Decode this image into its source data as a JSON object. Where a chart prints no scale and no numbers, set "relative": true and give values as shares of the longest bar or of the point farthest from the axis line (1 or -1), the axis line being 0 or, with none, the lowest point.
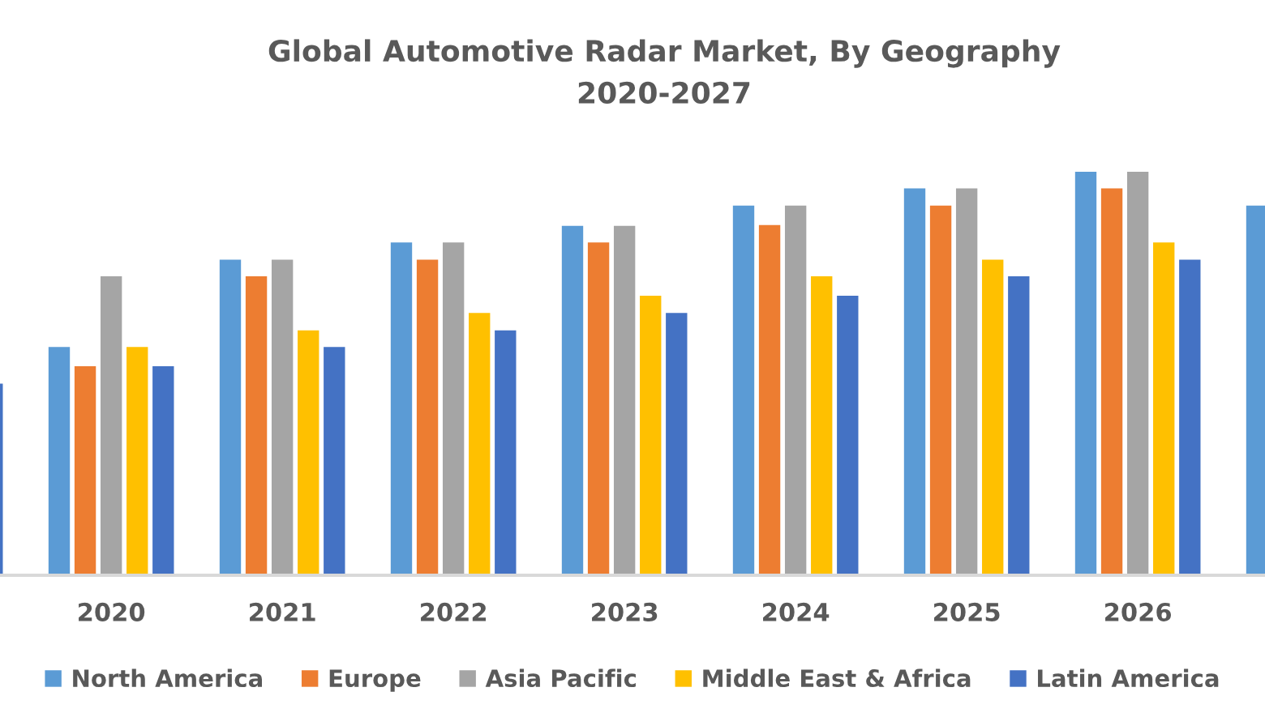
{
  "chart_data": {
    "type": "bar",
    "title": "Global Automotive Radar Market, By Geography\n2020-2027",
    "relative": true,
    "categories": [
      null,
      "2020",
      "2021",
      "2022",
      "2023",
      "2024",
      "2025",
      "2026",
      null
    ],
    "series": [
      {
        "name": "North America",
        "color": "#5b9bd5",
        "values": [
          null,
          0.566,
          0.782,
          0.825,
          0.866,
          0.916,
          0.959,
          1.0,
          0.916
        ]
      },
      {
        "name": "Europe",
        "color": "#ed7d31",
        "values": [
          null,
          0.518,
          0.741,
          0.782,
          0.825,
          0.868,
          0.916,
          0.959,
          null
        ]
      },
      {
        "name": "Asia Pacific",
        "color": "#a5a5a5",
        "values": [
          null,
          0.741,
          0.782,
          0.825,
          0.866,
          0.916,
          0.959,
          1.0,
          null
        ]
      },
      {
        "name": "Middle East & Africa",
        "color": "#ffc000",
        "values": [
          null,
          0.566,
          0.607,
          0.65,
          0.693,
          0.741,
          0.782,
          0.825,
          null
        ]
      },
      {
        "name": "Latin America",
        "color": "#4472c4",
        "values": [
          0.475,
          0.518,
          0.566,
          0.607,
          0.65,
          0.693,
          0.741,
          0.782,
          null
        ]
      }
    ],
    "legend": "bottom",
    "grid": false
  }
}
